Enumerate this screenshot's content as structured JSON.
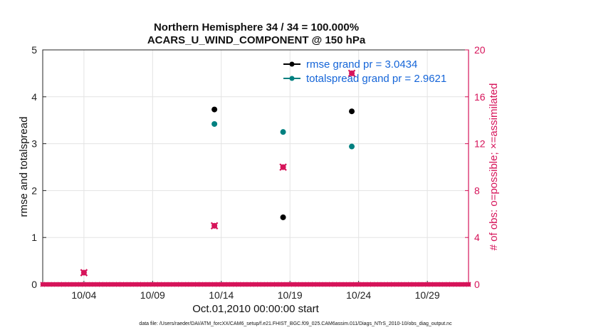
{
  "chart_data": {
    "type": "scatter",
    "title_line1": "Northern Hemisphere 34 / 34 = 100.000%",
    "title_line2": "ACARS_U_WIND_COMPONENT @ 150 hPa",
    "xlabel": "Oct.01,2010 00:00:00 start",
    "ylabel_left": "rmse and totalspread",
    "ylabel_right": "# of obs: o=possible; ×=assimilated",
    "xlim": [
      1,
      32
    ],
    "ylim_left": [
      0,
      5
    ],
    "ylim_right": [
      0,
      20
    ],
    "x_ticks": [
      {
        "value": 4,
        "label": "10/04"
      },
      {
        "value": 9,
        "label": "10/09"
      },
      {
        "value": 14,
        "label": "10/14"
      },
      {
        "value": 19,
        "label": "10/19"
      },
      {
        "value": 24,
        "label": "10/24"
      },
      {
        "value": 29,
        "label": "10/29"
      }
    ],
    "y_ticks_left": [
      "0",
      "1",
      "2",
      "3",
      "4",
      "5"
    ],
    "y_ticks_right": [
      "0",
      "4",
      "8",
      "12",
      "16",
      "20"
    ],
    "series": [
      {
        "name": "rmse",
        "legend": "rmse grand pr = 3.0434",
        "color": "#000000",
        "axis": "left",
        "points": [
          [
            13.5,
            3.73
          ],
          [
            18.5,
            1.43
          ],
          [
            23.5,
            3.69
          ]
        ]
      },
      {
        "name": "totalspread",
        "legend": "totalspread grand pr = 2.9621",
        "color": "#008080",
        "axis": "left",
        "points": [
          [
            13.5,
            3.42
          ],
          [
            18.5,
            3.25
          ],
          [
            23.5,
            2.94
          ]
        ]
      },
      {
        "name": "obs_possible",
        "color": "#d6145a",
        "axis": "right",
        "points": [
          [
            4,
            1
          ],
          [
            13.5,
            5
          ],
          [
            18.5,
            10
          ],
          [
            23.5,
            18
          ]
        ]
      },
      {
        "name": "obs_assimilated",
        "color": "#d6145a",
        "axis": "right",
        "points": [
          [
            4,
            1
          ],
          [
            13.5,
            5
          ],
          [
            18.5,
            10
          ],
          [
            23.5,
            18
          ]
        ]
      }
    ],
    "zero_obs_start": 1.0,
    "zero_obs_end": 32.0,
    "zero_obs_step": 0.25
  },
  "footnote": "data file: /Users/raeder/DAI/ATM_forcXX/CAM6_setup/f.e21.FHIST_BGC.f09_025.CAM6assim.011/Diags_NTrS_2010-10/obs_diag_output.nc"
}
